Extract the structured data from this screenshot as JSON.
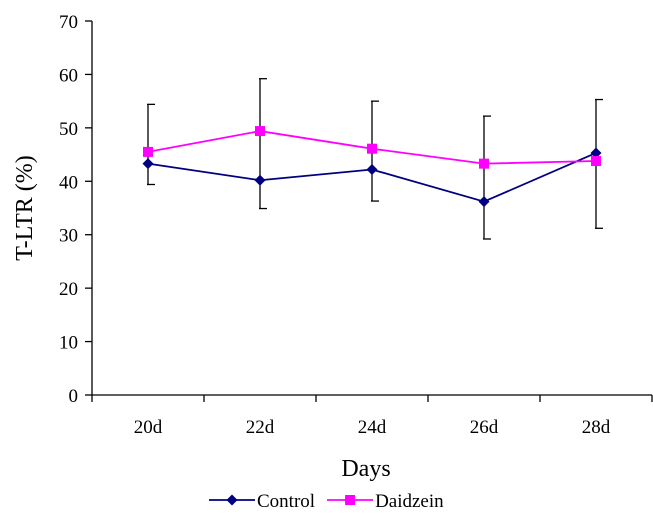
{
  "chart_data": {
    "type": "line",
    "title": "",
    "xlabel": "Days",
    "ylabel": "T-LTR (%)",
    "categories": [
      "20d",
      "22d",
      "24d",
      "26d",
      "28d"
    ],
    "ylim": [
      0,
      70
    ],
    "yticks": [
      0,
      10,
      20,
      30,
      40,
      50,
      60,
      70
    ],
    "grid": false,
    "legend_position": "bottom",
    "series": [
      {
        "name": "Control",
        "color": "#000080",
        "marker": "diamond",
        "values": [
          43.3,
          40.2,
          42.2,
          36.2,
          45.3
        ],
        "error_upper": [
          54.4,
          59.2,
          55.0,
          52.2,
          55.3
        ],
        "error_lower": [
          39.4,
          34.9,
          36.3,
          29.2,
          31.2
        ]
      },
      {
        "name": "Daidzein",
        "color": "#ff00ff",
        "marker": "square",
        "values": [
          45.5,
          49.4,
          46.1,
          43.3,
          43.8
        ],
        "error_upper": [],
        "error_lower": []
      }
    ]
  }
}
